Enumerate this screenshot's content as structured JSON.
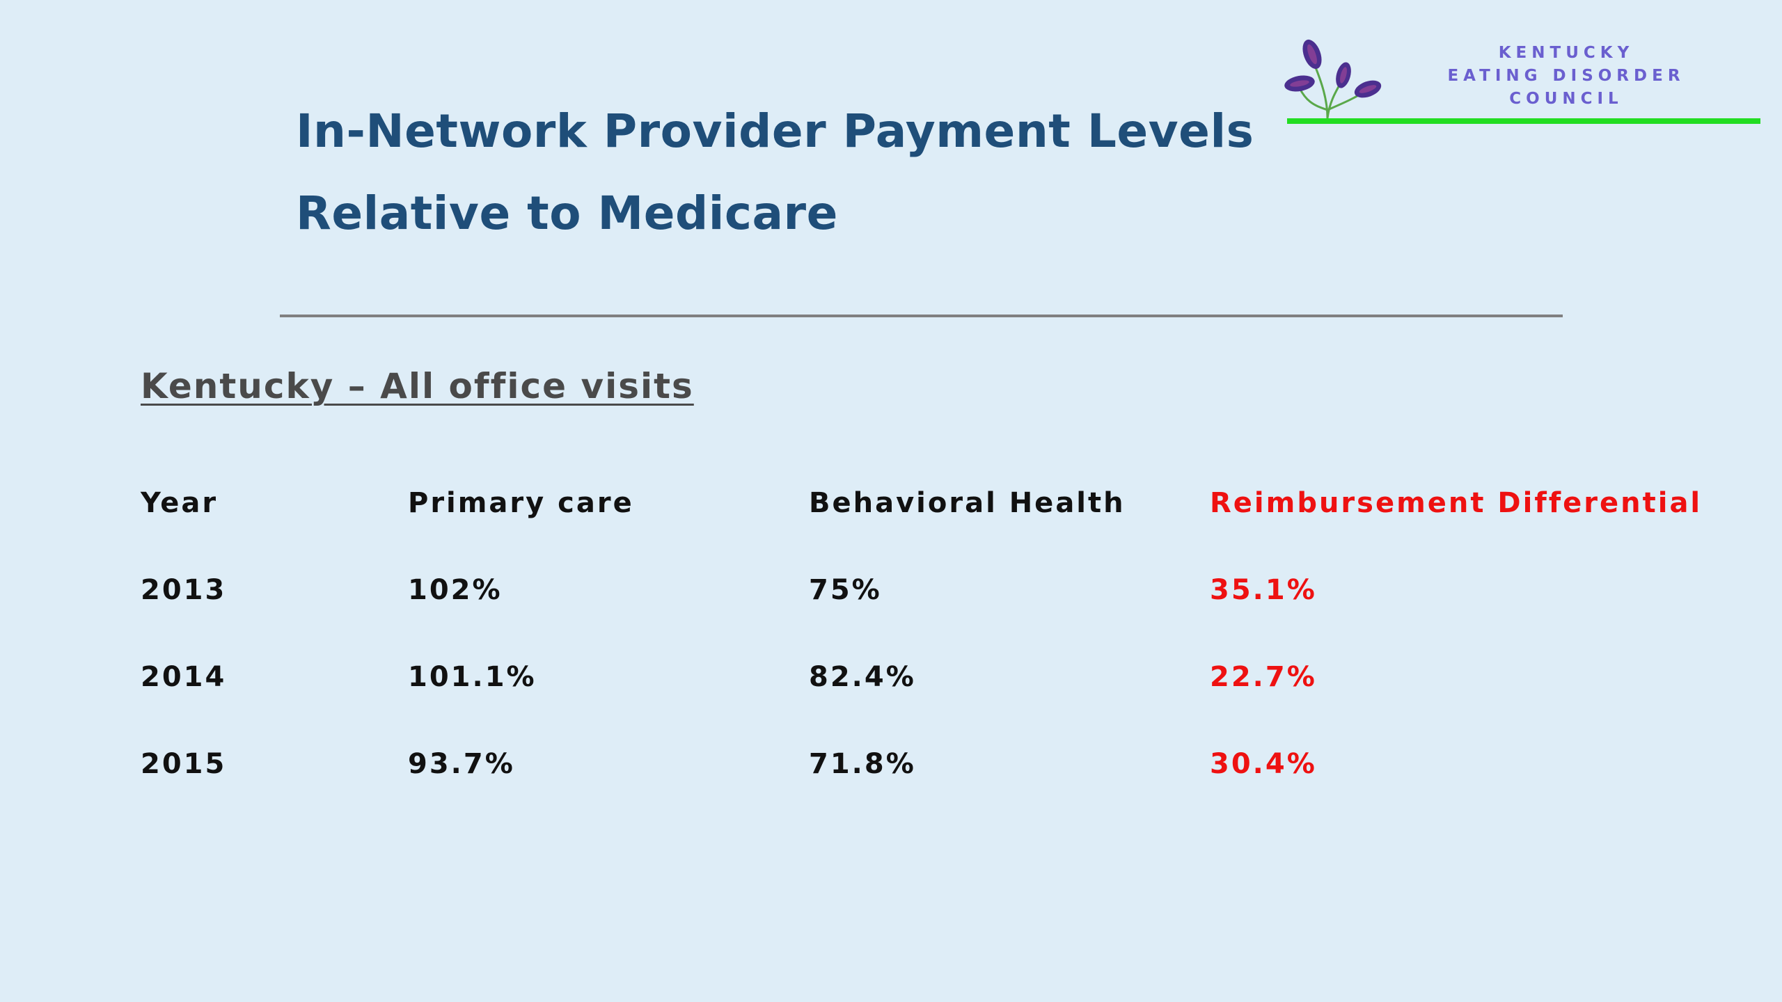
{
  "title": {
    "line1": "In-Network Provider Payment Levels",
    "line2": "Relative to Medicare"
  },
  "logo": {
    "line1": "KENTUCKY",
    "line2": "EATING DISORDER",
    "line3": "COUNCIL",
    "icon": "plant-leaves-icon",
    "leaf_color": "#4b2f8f",
    "accent_color": "#22dd22"
  },
  "subtitle": "Kentucky – All office visits",
  "table": {
    "headers": [
      "Year",
      "Primary care",
      "Behavioral Health",
      "Reimbursement Differential"
    ],
    "rows": [
      [
        "2013",
        "102%",
        "75%",
        "35.1%"
      ],
      [
        "2014",
        "101.1%",
        "82.4%",
        "22.7%"
      ],
      [
        "2015",
        "93.7%",
        "71.8%",
        "30.4%"
      ]
    ],
    "highlight_color": "#ee1111"
  }
}
